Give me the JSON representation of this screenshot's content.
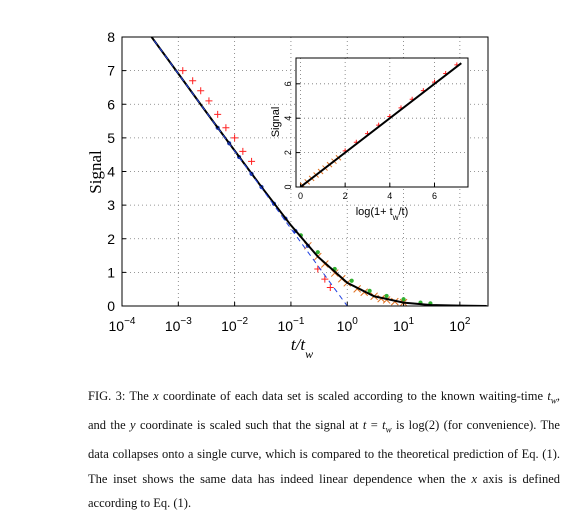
{
  "chart_data": [
    {
      "type": "line",
      "x_log": true,
      "grid": true,
      "xlim": [
        0.0001,
        316
      ],
      "ylim": [
        0,
        8
      ],
      "xticks": [
        {
          "value": 0.0001,
          "label": "10",
          "exponent": "−4"
        },
        {
          "value": 0.001,
          "label": "10",
          "exponent": "−3"
        },
        {
          "value": 0.01,
          "label": "10",
          "exponent": "−2"
        },
        {
          "value": 0.1,
          "label": "10",
          "exponent": "−1"
        },
        {
          "value": 1,
          "label": "10",
          "exponent": "0"
        },
        {
          "value": 10,
          "label": "10",
          "exponent": "1"
        },
        {
          "value": 100,
          "label": "10",
          "exponent": "2"
        }
      ],
      "yticks": [
        0,
        1,
        2,
        3,
        4,
        5,
        6,
        7,
        8
      ],
      "y_label": "Signal",
      "x_label": "t/t",
      "x_label_sub": "w",
      "series": [
        {
          "marker": "plus",
          "color": "#ff2020",
          "x": [
            0.0012,
            0.0018,
            0.0025,
            0.0035,
            0.005,
            0.007,
            0.01,
            0.014,
            0.02,
            0.3,
            0.4,
            0.5
          ],
          "values": [
            7.0,
            6.7,
            6.4,
            6.1,
            5.7,
            5.3,
            5.0,
            4.6,
            4.3,
            1.1,
            0.8,
            0.55
          ]
        },
        {
          "marker": "cross",
          "color": "#e07020",
          "x": [
            0.2,
            0.3,
            0.4,
            0.6,
            0.8,
            1,
            1.5,
            2,
            3,
            4,
            5,
            7,
            10
          ],
          "values": [
            1.79,
            1.47,
            1.25,
            0.98,
            0.81,
            0.69,
            0.51,
            0.41,
            0.29,
            0.22,
            0.18,
            0.13,
            0.1
          ]
        },
        {
          "marker": "dot",
          "color": "#30b030",
          "x": [
            0.15,
            0.3,
            0.6,
            1.2,
            2.5,
            5,
            10,
            20,
            30
          ],
          "values": [
            2.1,
            1.6,
            1.1,
            0.75,
            0.45,
            0.3,
            0.2,
            0.1,
            0.08
          ]
        },
        {
          "marker": "dot",
          "color": "#2040c0",
          "x": [
            0.005,
            0.008,
            0.012,
            0.02,
            0.03,
            0.05,
            0.08,
            0.12,
            0.2
          ],
          "values": [
            5.3,
            4.84,
            4.43,
            3.93,
            3.54,
            3.04,
            2.6,
            2.23,
            1.79
          ]
        },
        {
          "line": "solid",
          "color": "#000000",
          "x": [
            0.0003,
            0.001,
            0.003,
            0.01,
            0.03,
            0.1,
            0.3,
            1,
            3,
            10,
            30,
            100,
            300
          ],
          "values": [
            8.11,
            6.91,
            5.81,
            4.62,
            3.54,
            2.4,
            1.47,
            0.69,
            0.29,
            0.1,
            0.03,
            0.01,
            0.0
          ]
        },
        {
          "line": "dashed",
          "color": "#2040e0",
          "x": [
            0.0003,
            0.001,
            0.003,
            0.01,
            0.03,
            0.1,
            0.3,
            1
          ],
          "values": [
            8.11,
            6.91,
            5.81,
            4.61,
            3.51,
            2.3,
            1.2,
            0
          ]
        }
      ]
    },
    {
      "type": "line",
      "x_log": false,
      "grid": true,
      "xlim": [
        -0.2,
        7.5
      ],
      "ylim": [
        0,
        7.5
      ],
      "xticks": [
        0,
        2,
        4,
        6
      ],
      "yticks": [
        0,
        2,
        4,
        6
      ],
      "y_label": "Signal",
      "x_label": "log(1+ t",
      "x_label_sub": "w",
      "x_label_end": "/t)",
      "series": [
        {
          "marker": "plus",
          "color": "#ff2020",
          "x": [
            2,
            2.5,
            3,
            3.5,
            4,
            4.5,
            5,
            5.5,
            6,
            6.5,
            7
          ],
          "values": [
            2.1,
            2.6,
            3.1,
            3.6,
            4.1,
            4.6,
            5.1,
            5.6,
            6.1,
            6.6,
            7.1
          ]
        },
        {
          "marker": "cross",
          "color": "#e07020",
          "x": [
            0.1,
            0.3,
            0.5,
            0.7,
            0.9,
            1.1,
            1.3,
            1.5,
            1.7
          ],
          "values": [
            0.1,
            0.3,
            0.5,
            0.7,
            0.9,
            1.1,
            1.3,
            1.5,
            1.7
          ]
        },
        {
          "line": "solid",
          "color": "#000000",
          "x": [
            0,
            7.2
          ],
          "values": [
            0,
            7.2
          ]
        }
      ]
    }
  ],
  "caption": [
    {
      "text": "FIG. 3: The "
    },
    {
      "text": "x",
      "style": "italic"
    },
    {
      "text": " coordinate of each data set is scaled according to the known waiting-time "
    },
    {
      "text": "t",
      "style": "italic"
    },
    {
      "text": "w",
      "style": "sub"
    },
    {
      "text": ", and the "
    },
    {
      "text": "y",
      "style": "italic"
    },
    {
      "text": " coordinate is scaled such that the signal at "
    },
    {
      "text": "t",
      "style": "italic"
    },
    {
      "text": " = "
    },
    {
      "text": "t",
      "style": "italic"
    },
    {
      "text": "w",
      "style": "sub"
    },
    {
      "text": " is log(2) (for convenience). The data collapses onto a single curve, which is compared to the theoretical prediction of Eq. (1). The inset shows the same data has indeed linear dependence when the "
    },
    {
      "text": "x",
      "style": "italic"
    },
    {
      "text": " axis is defined according to Eq. (1)."
    }
  ]
}
